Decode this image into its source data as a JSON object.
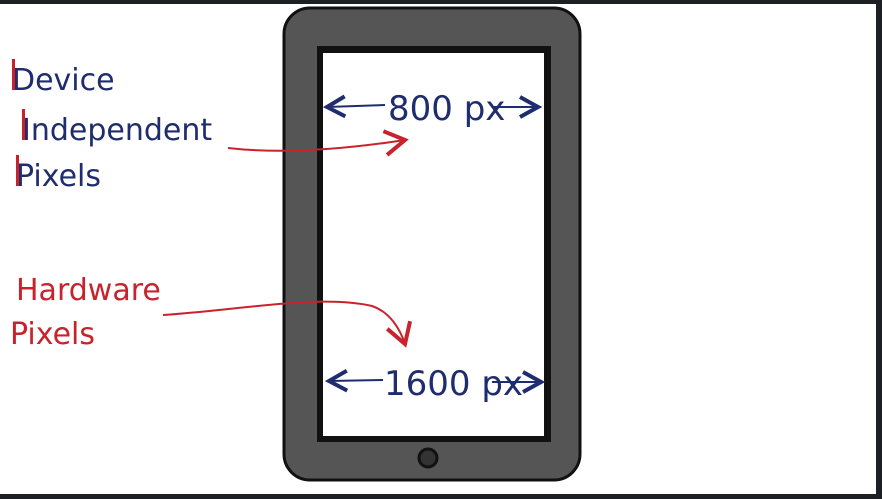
{
  "diagram": {
    "labels": {
      "device_line1": "Device",
      "device_line2": "Independent",
      "device_line3": "Pixels",
      "hardware_line1": "Hardware",
      "hardware_line2": "Pixels",
      "dip_measure": "800 px",
      "hw_measure": "1600 px"
    },
    "colors": {
      "red": "#c8232c",
      "blue": "#1f2d6e",
      "device_body": "#555555",
      "outline": "#111111",
      "screen": "#ffffff"
    }
  }
}
